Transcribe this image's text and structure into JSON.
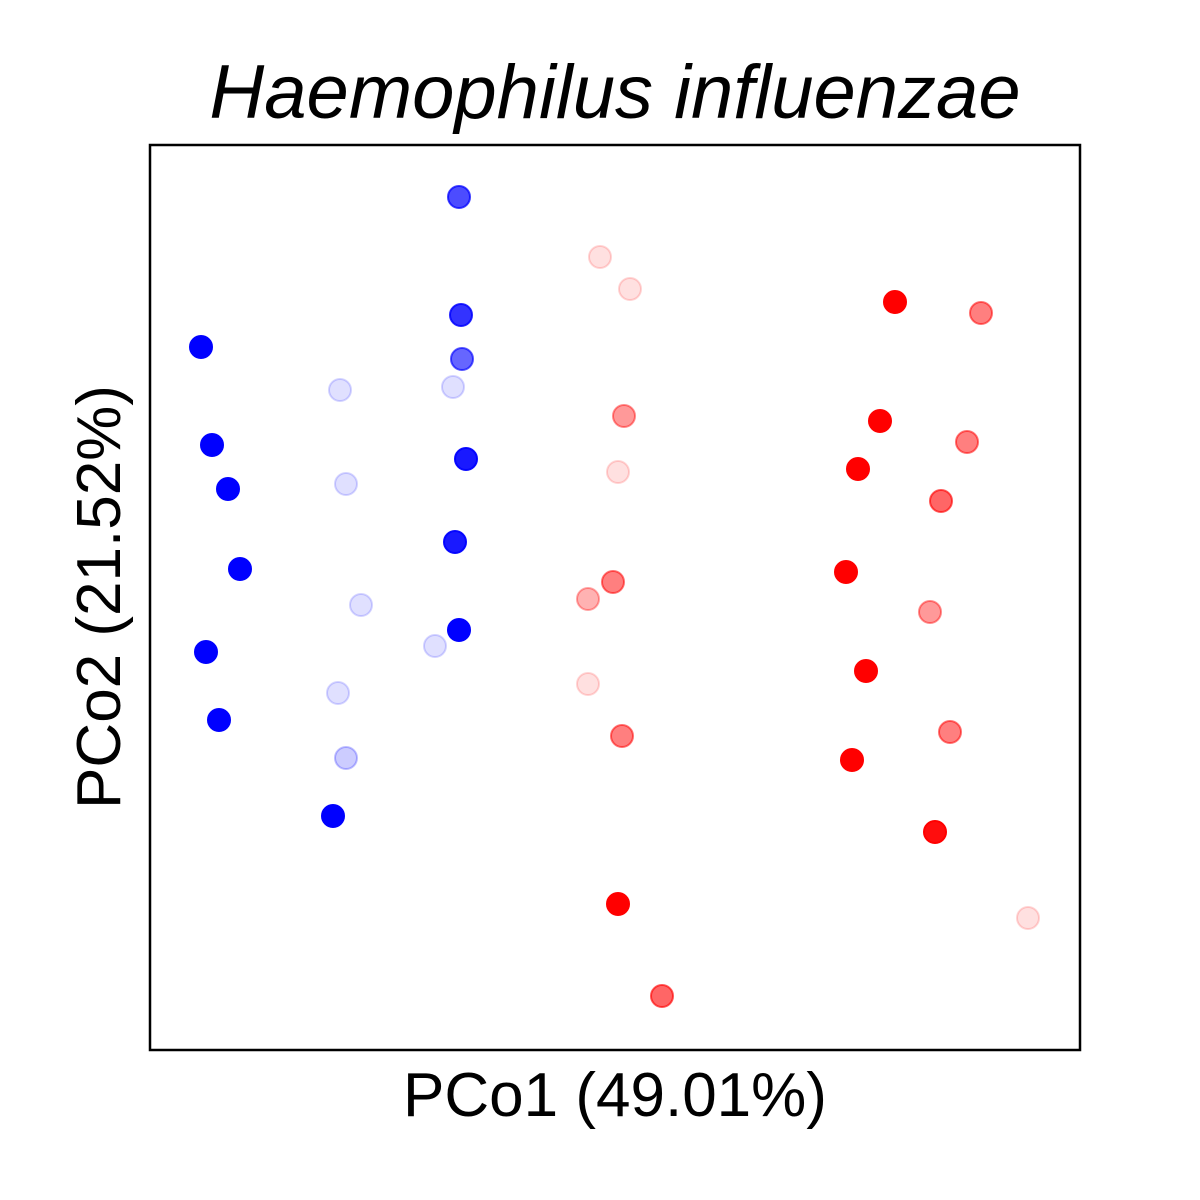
{
  "chart_data": {
    "type": "scatter",
    "title": "Haemophilus influenzae",
    "xlabel": "PCo1 (49.01%)",
    "ylabel": "PCo2 (21.52%)",
    "xlim": [
      0,
      930
    ],
    "ylim": [
      0,
      905
    ],
    "grid": false,
    "ticks": false,
    "points": [
      {
        "x": 309,
        "y": 853,
        "color": "#0000ff",
        "alpha": 0.7
      },
      {
        "x": 311,
        "y": 735,
        "color": "#0000ff",
        "alpha": 0.8
      },
      {
        "x": 312,
        "y": 691,
        "color": "#0000ff",
        "alpha": 0.6
      },
      {
        "x": 51,
        "y": 703,
        "color": "#0000ff",
        "alpha": 1.0
      },
      {
        "x": 190,
        "y": 660,
        "color": "#0000ff",
        "alpha": 0.12
      },
      {
        "x": 303,
        "y": 663,
        "color": "#0000ff",
        "alpha": 0.12
      },
      {
        "x": 62,
        "y": 605,
        "color": "#0000ff",
        "alpha": 1.0
      },
      {
        "x": 316,
        "y": 591,
        "color": "#0000ff",
        "alpha": 0.9
      },
      {
        "x": 78,
        "y": 561,
        "color": "#0000ff",
        "alpha": 1.0
      },
      {
        "x": 196,
        "y": 566,
        "color": "#0000ff",
        "alpha": 0.12
      },
      {
        "x": 305,
        "y": 508,
        "color": "#0000ff",
        "alpha": 0.9
      },
      {
        "x": 90,
        "y": 481,
        "color": "#0000ff",
        "alpha": 1.0
      },
      {
        "x": 211,
        "y": 445,
        "color": "#0000ff",
        "alpha": 0.12
      },
      {
        "x": 285,
        "y": 404,
        "color": "#0000ff",
        "alpha": 0.12
      },
      {
        "x": 309,
        "y": 420,
        "color": "#0000ff",
        "alpha": 1.0
      },
      {
        "x": 56,
        "y": 398,
        "color": "#0000ff",
        "alpha": 1.0
      },
      {
        "x": 69,
        "y": 330,
        "color": "#0000ff",
        "alpha": 1.0
      },
      {
        "x": 188,
        "y": 357,
        "color": "#0000ff",
        "alpha": 0.12
      },
      {
        "x": 196,
        "y": 292,
        "color": "#0000ff",
        "alpha": 0.2
      },
      {
        "x": 183,
        "y": 234,
        "color": "#0000ff",
        "alpha": 1.0
      },
      {
        "x": 450,
        "y": 793,
        "color": "#ff0000",
        "alpha": 0.12
      },
      {
        "x": 480,
        "y": 761,
        "color": "#ff0000",
        "alpha": 0.12
      },
      {
        "x": 745,
        "y": 748,
        "color": "#ff0000",
        "alpha": 1.0
      },
      {
        "x": 831,
        "y": 737,
        "color": "#ff0000",
        "alpha": 0.5
      },
      {
        "x": 474,
        "y": 634,
        "color": "#ff0000",
        "alpha": 0.4
      },
      {
        "x": 730,
        "y": 629,
        "color": "#ff0000",
        "alpha": 1.0
      },
      {
        "x": 817,
        "y": 608,
        "color": "#ff0000",
        "alpha": 0.5
      },
      {
        "x": 468,
        "y": 578,
        "color": "#ff0000",
        "alpha": 0.12
      },
      {
        "x": 708,
        "y": 581,
        "color": "#ff0000",
        "alpha": 1.0
      },
      {
        "x": 791,
        "y": 549,
        "color": "#ff0000",
        "alpha": 0.6
      },
      {
        "x": 463,
        "y": 468,
        "color": "#ff0000",
        "alpha": 0.5
      },
      {
        "x": 438,
        "y": 451,
        "color": "#ff0000",
        "alpha": 0.3
      },
      {
        "x": 696,
        "y": 478,
        "color": "#ff0000",
        "alpha": 1.0
      },
      {
        "x": 780,
        "y": 438,
        "color": "#ff0000",
        "alpha": 0.4
      },
      {
        "x": 438,
        "y": 366,
        "color": "#ff0000",
        "alpha": 0.12
      },
      {
        "x": 716,
        "y": 379,
        "color": "#ff0000",
        "alpha": 1.0
      },
      {
        "x": 800,
        "y": 318,
        "color": "#ff0000",
        "alpha": 0.5
      },
      {
        "x": 472,
        "y": 314,
        "color": "#ff0000",
        "alpha": 0.5
      },
      {
        "x": 702,
        "y": 290,
        "color": "#ff0000",
        "alpha": 1.0
      },
      {
        "x": 785,
        "y": 218,
        "color": "#ff0000",
        "alpha": 0.95
      },
      {
        "x": 468,
        "y": 146,
        "color": "#ff0000",
        "alpha": 1.0
      },
      {
        "x": 878,
        "y": 132,
        "color": "#ff0000",
        "alpha": 0.12
      },
      {
        "x": 512,
        "y": 54,
        "color": "#ff0000",
        "alpha": 0.6
      }
    ]
  }
}
